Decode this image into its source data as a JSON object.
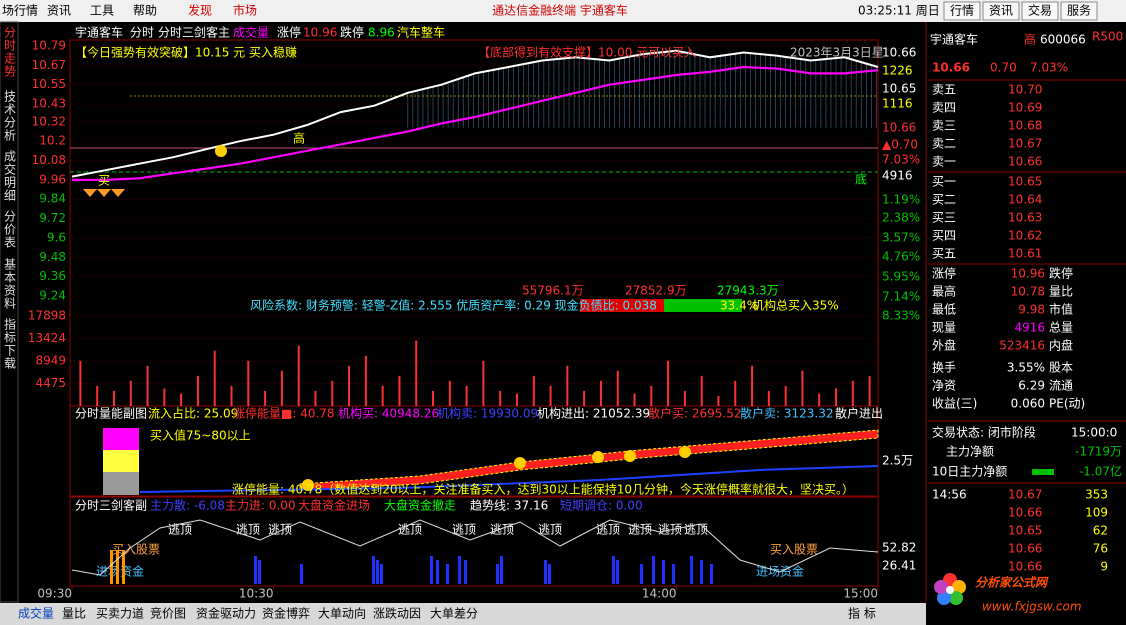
{
  "menu": {
    "left": [
      "场行情",
      "资讯",
      "工具",
      "帮助",
      "发现",
      "市场"
    ],
    "center": "通达信金融终端  宇通客车",
    "clock": "03:25:11 周日",
    "right": [
      "行情",
      "资讯",
      "交易",
      "服务"
    ]
  },
  "side_tabs": [
    "分时走势",
    "技术分析",
    "成交明细",
    "分价表",
    "基本资料",
    "指标下载"
  ],
  "chart_header": [
    "宇通客车",
    "分时",
    "分时三剑客主",
    "成交量",
    "涨停",
    "10.96",
    "跌停",
    "8.96",
    "汽车整车"
  ],
  "annotations": {
    "left_box": "【今日强势有效突破】10.15 元 买入稳赚",
    "mid_box": "【底部得到有效支撑】10.00 元可以买入",
    "date": "2023年3月3日星",
    "high": "高",
    "low": "底",
    "buy": "买",
    "m1": "55796.1万",
    "m2": "27852.9万",
    "m3": "27943.3万",
    "risk": "风险系数: 财务预警: 轻警-Z值: 2.555 优质资产率: 0.29 现金负债比: 0.038",
    "pct": "33.4%",
    "inst": "机构总买入35%"
  },
  "right_axis": [
    "10.66",
    "1226",
    "10.65",
    "1116",
    "10.66",
    "▲0.70",
    "7.03%",
    "4916",
    "1.19%",
    "2.38%",
    "3.57%",
    "4.76%",
    "5.95%",
    "7.14%",
    "8.33%"
  ],
  "chart_data": [
    {
      "type": "line",
      "x": [
        0,
        10,
        20,
        30,
        40,
        50,
        60,
        70,
        80,
        90,
        100,
        110,
        120,
        130,
        140,
        150,
        160,
        170,
        180,
        190,
        200,
        210,
        220,
        230,
        240
      ],
      "xlim": [
        0,
        240
      ],
      "xticks": [
        {
          "value": 0,
          "label": "09:30"
        },
        {
          "value": 60,
          "label": "10:30"
        },
        {
          "value": 180,
          "label": "14:00"
        },
        {
          "value": 240,
          "label": "15:00"
        }
      ],
      "ylim": [
        9.24,
        10.79
      ],
      "yticks": [
        10.79,
        10.67,
        10.55,
        10.43,
        10.32,
        10.2,
        10.08,
        9.96,
        9.84,
        9.72,
        9.6,
        9.48,
        9.36,
        9.24
      ],
      "series": [
        {
          "color": "#ffffff",
          "values": [
            9.98,
            10.02,
            10.06,
            10.1,
            10.15,
            10.2,
            10.24,
            10.3,
            10.38,
            10.42,
            10.5,
            10.55,
            10.62,
            10.66,
            10.7,
            10.72,
            10.7,
            10.74,
            10.76,
            10.72,
            10.75,
            10.73,
            10.7,
            10.72,
            10.66
          ]
        },
        {
          "color": "#ff00ff",
          "values": [
            9.96,
            9.96,
            9.97,
            10.0,
            10.03,
            10.06,
            10.1,
            10.14,
            10.18,
            10.22,
            10.26,
            10.31,
            10.35,
            10.4,
            10.45,
            10.5,
            10.55,
            10.58,
            10.61,
            10.63,
            10.66,
            10.65,
            10.62,
            10.62,
            10.64
          ]
        }
      ]
    },
    {
      "type": "bar",
      "x": [
        2.5,
        7.5,
        12.5,
        17.5,
        22.5,
        27.5,
        32.5,
        37.5,
        42.5,
        47.5,
        52.5,
        57.5,
        62.5,
        67.5,
        72.5,
        77.5,
        82.5,
        87.5,
        92.5,
        97.5,
        102.5,
        107.5,
        112.5,
        117.5,
        122.5,
        127.5,
        132.5,
        137.5,
        142.5,
        147.5,
        152.5,
        157.5,
        162.5,
        167.5,
        172.5,
        177.5,
        182.5,
        187.5,
        192.5,
        197.5,
        202.5,
        207.5,
        212.5,
        217.5,
        222.5,
        227.5,
        232.5,
        237.5
      ],
      "ylim": [
        0,
        17898
      ],
      "yticks": [
        4475,
        8949,
        13424,
        17898
      ],
      "color": "#ff3030",
      "values": [
        9000,
        4000,
        3000,
        5000,
        8000,
        3500,
        2500,
        6000,
        11000,
        4000,
        9000,
        3000,
        7000,
        12000,
        3000,
        5000,
        8000,
        10000,
        4000,
        6000,
        13000,
        3000,
        5000,
        4000,
        9000,
        3000,
        2500,
        6000,
        4000,
        8000,
        3000,
        5000,
        7000,
        2500,
        4000,
        9000,
        3000,
        6000,
        2000,
        5000,
        8000,
        3000,
        4000,
        7000,
        2500,
        3500,
        5000,
        6000
      ]
    }
  ],
  "pane1": {
    "title": "分时量能副图",
    "labels": [
      "流入占比: 25.09",
      "涨停能量■: 40.78",
      "机构买: 40948.26",
      "机构卖: 19930.09",
      "机构进出: 21052.39",
      "散户买: 2695.52",
      "散户卖: 3123.32",
      "散户进出"
    ],
    "buy_note": "买入值75~80以上",
    "energy_note": "涨停能量: 40.78（数值达到20以上，关注准备买入，达到30以上能保持10几分钟，今天涨停概率就很大，坚决买。）",
    "axis": "2.5万"
  },
  "pane2": {
    "title": "分时三剑客副",
    "labels": [
      "主力散: -6.08",
      "主力进: 0.00",
      "大盘资金进场",
      "大盘资金撤走",
      "趋势线: 37.16",
      "短期调仓: 0.00"
    ],
    "escape": "逃顶",
    "buy": "买入股票",
    "fund": "进场资金",
    "axis": [
      "52.82",
      "26.41"
    ]
  },
  "quote": {
    "name": "宇通客车",
    "flag": "高",
    "code": "600066",
    "tag": "R500",
    "price": "10.66",
    "change": "0.70",
    "pct": "7.03%",
    "sell": [
      [
        "卖五",
        "10.70"
      ],
      [
        "卖四",
        "10.69"
      ],
      [
        "卖三",
        "10.68"
      ],
      [
        "卖二",
        "10.67"
      ],
      [
        "卖一",
        "10.66"
      ]
    ],
    "buy": [
      [
        "买一",
        "10.65"
      ],
      [
        "买二",
        "10.64"
      ],
      [
        "买三",
        "10.63"
      ],
      [
        "买四",
        "10.62"
      ],
      [
        "买五",
        "10.61"
      ]
    ],
    "stats": [
      [
        "涨停",
        "10.96",
        "跌停"
      ],
      [
        "最高",
        "10.78",
        "量比"
      ],
      [
        "最低",
        "9.98",
        "市值"
      ],
      [
        "现量",
        "4916",
        "总量"
      ],
      [
        "外盘",
        "523416",
        "内盘"
      ],
      [
        "换手",
        "3.55%",
        "股本"
      ],
      [
        "净资",
        "6.29",
        "流通"
      ],
      [
        "收益(三)",
        "0.060",
        "PE(动)"
      ]
    ],
    "status": "交易状态: 闭市阶段",
    "status_time": "15:00:0",
    "main_net": [
      "主力净额",
      "-1719万"
    ],
    "main_net10": [
      "10日主力净额",
      "-1.07亿"
    ],
    "trades": {
      "time": "14:56",
      "rows": [
        [
          "10.67",
          "353"
        ],
        [
          "10.66",
          "109"
        ],
        [
          "10.65",
          "62"
        ],
        [
          "10.66",
          "76"
        ],
        [
          "10.66",
          "9"
        ]
      ]
    }
  },
  "logo": {
    "name": "分析家公式网",
    "url": "www.fxjgsw.com"
  },
  "bottom_tabs": [
    "成交量",
    "量比",
    "买卖力道",
    "竞价图",
    "资金驱动力",
    "资金博弈",
    "大单动向",
    "涨跌动因",
    "大单差分"
  ],
  "bottom_right": "指 标"
}
